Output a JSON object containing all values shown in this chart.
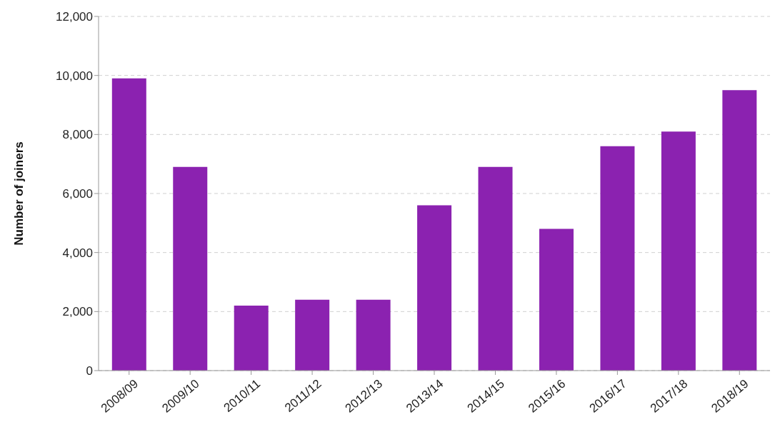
{
  "chart_data": {
    "type": "bar",
    "ylabel": "Number of joiners",
    "categories": [
      "2008/09",
      "2009/10",
      "2010/11",
      "2011/12",
      "2012/13",
      "2013/14",
      "2014/15",
      "2015/16",
      "2016/17",
      "2017/18",
      "2018/19"
    ],
    "values": [
      9900,
      6900,
      2200,
      2400,
      2400,
      5600,
      6900,
      4800,
      7600,
      8100,
      9500
    ],
    "color": "#8b22b0",
    "ylim": [
      0,
      12000
    ],
    "yticks": [
      0,
      {
        "value": 2000,
        "label": "2,000"
      },
      {
        "value": 4000,
        "label": "4,000"
      },
      {
        "value": 6000,
        "label": "6,000"
      },
      {
        "value": 8000,
        "label": "8,000"
      },
      {
        "value": 10000,
        "label": "10,000"
      },
      {
        "value": 12000,
        "label": "12,000"
      }
    ],
    "grid": "y"
  }
}
